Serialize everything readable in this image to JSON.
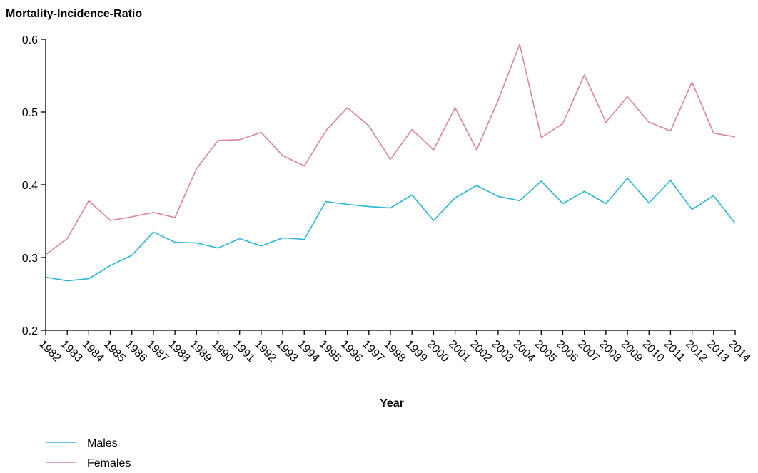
{
  "chart_data": {
    "type": "line",
    "ylabel": "Mortality-Incidence-Ratio",
    "xlabel": "Year",
    "ylim": [
      0.2,
      0.6
    ],
    "yticks": [
      "0.2",
      "0.3",
      "0.4",
      "0.5",
      "0.6"
    ],
    "grid": false,
    "legend_position": "bottom-left",
    "categories": [
      "1982",
      "1983",
      "1984",
      "1985",
      "1986",
      "1987",
      "1988",
      "1989",
      "1990",
      "1991",
      "1992",
      "1993",
      "1994",
      "1995",
      "1996",
      "1997",
      "1998",
      "1999",
      "2000",
      "2001",
      "2002",
      "2003",
      "2004",
      "2005",
      "2006",
      "2007",
      "2008",
      "2009",
      "2010",
      "2011",
      "2012",
      "2013",
      "2014"
    ],
    "series": [
      {
        "name": "Males",
        "color": "#2bb5d3",
        "values": [
          0.273,
          0.268,
          0.271,
          0.289,
          0.303,
          0.335,
          0.321,
          0.32,
          0.313,
          0.326,
          0.316,
          0.327,
          0.325,
          0.377,
          0.373,
          0.37,
          0.368,
          0.386,
          0.351,
          0.382,
          0.399,
          0.384,
          0.378,
          0.405,
          0.374,
          0.391,
          0.374,
          0.409,
          0.375,
          0.406,
          0.366,
          0.385,
          0.347
        ]
      },
      {
        "name": "Females",
        "color": "#d9859f",
        "values": [
          0.304,
          0.326,
          0.378,
          0.351,
          0.356,
          0.362,
          0.355,
          0.422,
          0.461,
          0.462,
          0.472,
          0.44,
          0.426,
          0.474,
          0.506,
          0.481,
          0.435,
          0.476,
          0.448,
          0.506,
          0.448,
          0.516,
          0.593,
          0.465,
          0.484,
          0.551,
          0.486,
          0.521,
          0.486,
          0.474,
          0.541,
          0.471,
          0.466
        ]
      }
    ]
  }
}
